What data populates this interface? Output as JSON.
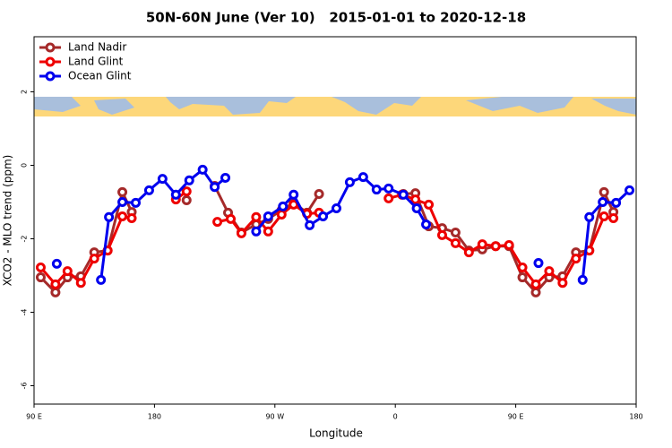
{
  "chart_data": {
    "type": "line",
    "title": "50N-60N June (Ver 10)   2015-01-01 to 2020-12-18",
    "x_label": "Longitude",
    "y_label": "XCO2 - MLO trend (ppm)",
    "xlim": [
      90,
      540
    ],
    "xticks": [
      {
        "value": 90,
        "label": "90 E"
      },
      180,
      {
        "value": 270,
        "label": "90 W"
      },
      {
        "value": 360,
        "label": "0"
      },
      {
        "value": 450,
        "label": "90 E"
      },
      {
        "value": 540,
        "label": "180"
      }
    ],
    "ylim": [
      -6.5,
      3.5
    ],
    "yticks": [
      -6,
      -4,
      -2,
      0,
      2
    ],
    "legend": "top-left",
    "series": [
      {
        "name": "Land Nadir",
        "color": "#a52a2a",
        "x": [
          95,
          106,
          115,
          125,
          135,
          145,
          156,
          163,
          180,
          204,
          210,
          225,
          235,
          245,
          256,
          265,
          275,
          284,
          294,
          303,
          320,
          366,
          375,
          385,
          395,
          405,
          415,
          425,
          435,
          445,
          455,
          465,
          475,
          485,
          495,
          505,
          516,
          523
        ],
        "values": [
          -3.05,
          -3.46,
          -3.05,
          -3.02,
          -2.37,
          -2.32,
          -0.73,
          -1.27,
          null,
          -0.95,
          null,
          -0.56,
          -1.29,
          -1.83,
          -1.61,
          -1.46,
          -1.22,
          -1.02,
          -1.29,
          -0.78,
          null,
          -0.78,
          -0.76,
          -1.66,
          -1.71,
          -1.83,
          -2.32,
          -2.29,
          -2.2,
          -2.2,
          -3.05,
          -3.46,
          -3.05,
          -3.02,
          -2.37,
          -2.32,
          -0.73,
          -1.27
        ]
      },
      {
        "name": "Land Glint",
        "color": "#ee0000",
        "x": [
          95,
          106,
          115,
          125,
          135,
          145,
          156,
          163,
          180,
          196,
          204,
          215,
          227,
          237,
          245,
          256,
          265,
          275,
          284,
          294,
          303,
          330,
          355,
          365,
          375,
          385,
          395,
          405,
          415,
          425,
          435,
          445,
          455,
          465,
          475,
          485,
          495,
          505,
          516,
          523
        ],
        "values": [
          -2.78,
          -3.24,
          -2.88,
          -3.2,
          -2.54,
          -2.32,
          -1.39,
          -1.44,
          null,
          -0.93,
          -0.71,
          null,
          -1.54,
          -1.46,
          -1.85,
          -1.41,
          -1.8,
          -1.34,
          -1.07,
          -1.32,
          -1.29,
          null,
          -0.9,
          -0.8,
          -0.93,
          -1.07,
          -1.9,
          -2.12,
          -2.37,
          -2.15,
          -2.2,
          -2.17,
          -2.78,
          -3.24,
          -2.88,
          -3.2,
          -2.54,
          -2.32,
          -1.39,
          -1.44
        ]
      },
      {
        "name": "Ocean Glint",
        "color": "#0000ee",
        "x": [
          107,
          120,
          140,
          146,
          156,
          166,
          176,
          186,
          196,
          206,
          216,
          225,
          233,
          245,
          256,
          265,
          276,
          284,
          296,
          306,
          316,
          326,
          336,
          346,
          355,
          366,
          376,
          383,
          420,
          467,
          480,
          500,
          505,
          515,
          525,
          535
        ],
        "values": [
          -2.68,
          null,
          -3.12,
          -1.41,
          -1.0,
          -1.02,
          -0.68,
          -0.37,
          -0.8,
          -0.41,
          -0.12,
          -0.59,
          -0.34,
          null,
          -1.8,
          -1.39,
          -1.12,
          -0.8,
          -1.63,
          -1.39,
          -1.17,
          -0.46,
          -0.32,
          -0.66,
          -0.63,
          -0.8,
          -1.17,
          -1.61,
          null,
          -2.66,
          null,
          -3.12,
          -1.41,
          -1.0,
          -1.02,
          -0.68
        ]
      }
    ]
  }
}
